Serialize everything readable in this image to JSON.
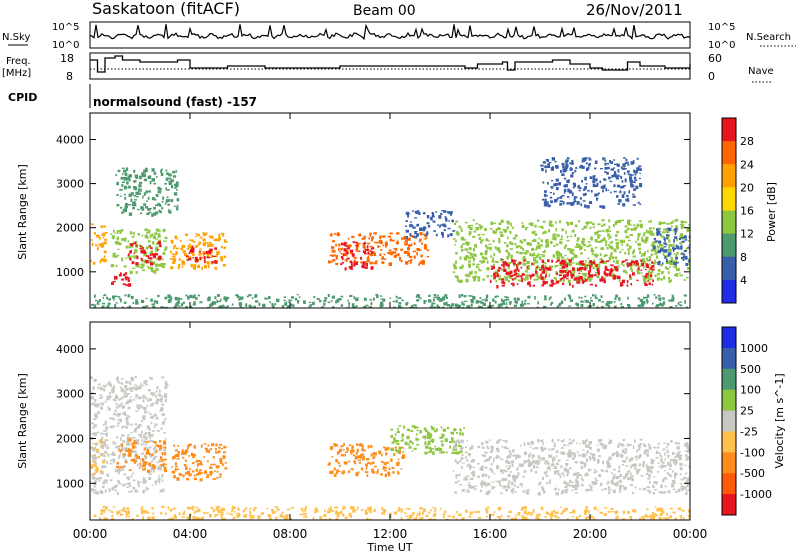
{
  "header": {
    "station": "Saskatoon (fitACF)",
    "beam": "Beam 00",
    "date": "26/Nov/2011"
  },
  "nsky_panel": {
    "left_label": "N.Sky",
    "y_ticks": [
      "10^5",
      "10^0"
    ],
    "right_label": "N.Search",
    "right_ticks": [
      "10^5",
      "10^0"
    ]
  },
  "freq_panel": {
    "left_label_1": "Freq.",
    "left_label_2": "[MHz]",
    "y_ticks": [
      18,
      8
    ],
    "right_label": "Nave",
    "right_ticks": [
      60,
      0
    ],
    "freq_steps_x_hours": [
      0,
      0.3,
      0.6,
      1.0,
      1.3,
      2.0,
      3.5,
      4.0,
      5.5,
      6.0,
      7.0,
      9.5,
      10.0,
      14.0,
      15.0,
      15.5,
      16.5,
      16.7,
      17.0,
      18.5,
      19.2,
      20.0,
      20.5,
      21.5,
      22.0,
      23.0,
      24.0
    ],
    "freq_steps_values": [
      16,
      10,
      17,
      18,
      16,
      15,
      16,
      12,
      13,
      13,
      12,
      12,
      13,
      13,
      12,
      14,
      15,
      11,
      15,
      16,
      14,
      12,
      11,
      15,
      13,
      12,
      14
    ]
  },
  "cpid": {
    "label": "CPID",
    "text": "normalsound (fast) -157"
  },
  "chart_data": [
    {
      "type": "heatmap",
      "name": "power",
      "ylabel": "Slant Range [km]",
      "xlabel": "Time UT",
      "xlim": [
        0,
        24
      ],
      "ylim": [
        180,
        4600
      ],
      "x_ticks": [
        "00:00",
        "04:00",
        "08:00",
        "12:00",
        "16:00",
        "20:00",
        "00:00"
      ],
      "y_ticks": [
        1000,
        2000,
        3000,
        4000
      ],
      "colorbar": {
        "label": "Power [dB]",
        "ticks": [
          "28",
          "24",
          "20",
          "16",
          "12",
          "8",
          "4"
        ],
        "colors": [
          "#e8141e",
          "#ff6600",
          "#ffa200",
          "#ffd700",
          "#8dc63f",
          "#4c9a6e",
          "#3a5faa",
          "#1f2ee6"
        ]
      },
      "regions": [
        {
          "x": [
            0.0,
            0.6
          ],
          "y": [
            1200,
            2100
          ],
          "color": "#ffa200"
        },
        {
          "x": [
            0.8,
            1.6
          ],
          "y": [
            700,
            1000
          ],
          "color": "#e8141e"
        },
        {
          "x": [
            0.8,
            3.0
          ],
          "y": [
            1000,
            2000
          ],
          "color": "#8dc63f"
        },
        {
          "x": [
            1.5,
            2.8
          ],
          "y": [
            1200,
            1700
          ],
          "color": "#e8141e"
        },
        {
          "x": [
            3.2,
            5.4
          ],
          "y": [
            1100,
            1900
          ],
          "color": "#ffa200"
        },
        {
          "x": [
            3.8,
            5.0
          ],
          "y": [
            1200,
            1600
          ],
          "color": "#e8141e"
        },
        {
          "x": [
            1.0,
            3.5
          ],
          "y": [
            2300,
            3400
          ],
          "color": "#4c9a6e"
        },
        {
          "x": [
            9.5,
            13.5
          ],
          "y": [
            1200,
            1900
          ],
          "color": "#ff6600"
        },
        {
          "x": [
            10.0,
            11.3
          ],
          "y": [
            1100,
            1700
          ],
          "color": "#e8141e"
        },
        {
          "x": [
            12.5,
            14.5
          ],
          "y": [
            1800,
            2400
          ],
          "color": "#3a5faa"
        },
        {
          "x": [
            14.5,
            24.0
          ],
          "y": [
            800,
            2200
          ],
          "color": "#8dc63f"
        },
        {
          "x": [
            16.0,
            22.5
          ],
          "y": [
            700,
            1300
          ],
          "color": "#e8141e"
        },
        {
          "x": [
            22.5,
            24.0
          ],
          "y": [
            1200,
            2000
          ],
          "color": "#3a5faa"
        },
        {
          "x": [
            18.0,
            22.0
          ],
          "y": [
            2500,
            3600
          ],
          "color": "#3a5faa"
        },
        {
          "x": [
            0.0,
            24.0
          ],
          "y": [
            200,
            500
          ],
          "color": "#4c9a6e"
        }
      ]
    },
    {
      "type": "heatmap",
      "name": "velocity",
      "ylabel": "Slant Range [km]",
      "xlabel": "Time UT",
      "xlim": [
        0,
        24
      ],
      "ylim": [
        180,
        4600
      ],
      "x_ticks": [
        "00:00",
        "04:00",
        "08:00",
        "12:00",
        "16:00",
        "20:00",
        "00:00"
      ],
      "y_ticks": [
        1000,
        2000,
        3000,
        4000
      ],
      "colorbar": {
        "label": "Velocity [m s^-1]",
        "ticks": [
          "1000",
          "500",
          "100",
          "25",
          "-25",
          "-100",
          "-500",
          "-1000"
        ],
        "colors": [
          "#1f2ee6",
          "#3a5faa",
          "#4c9a6e",
          "#8dc63f",
          "#c8c8c3",
          "#ffc04d",
          "#ff8c1a",
          "#ff5a0a",
          "#e8141e"
        ]
      },
      "regions": [
        {
          "x": [
            0.0,
            3.0
          ],
          "y": [
            800,
            3400
          ],
          "color": "#c8c8c3"
        },
        {
          "x": [
            0.0,
            0.5
          ],
          "y": [
            1200,
            2000
          ],
          "color": "#ffc04d"
        },
        {
          "x": [
            1.0,
            3.0
          ],
          "y": [
            1300,
            2000
          ],
          "color": "#ff8c1a"
        },
        {
          "x": [
            3.2,
            5.4
          ],
          "y": [
            1100,
            1900
          ],
          "color": "#ff8c1a"
        },
        {
          "x": [
            9.5,
            12.5
          ],
          "y": [
            1200,
            1900
          ],
          "color": "#ff8c1a"
        },
        {
          "x": [
            12.0,
            15.0
          ],
          "y": [
            1700,
            2300
          ],
          "color": "#8dc63f"
        },
        {
          "x": [
            14.5,
            24.0
          ],
          "y": [
            800,
            2000
          ],
          "color": "#c8c8c3"
        },
        {
          "x": [
            0.0,
            24.0
          ],
          "y": [
            200,
            500
          ],
          "color": "#ffc04d"
        }
      ]
    }
  ]
}
